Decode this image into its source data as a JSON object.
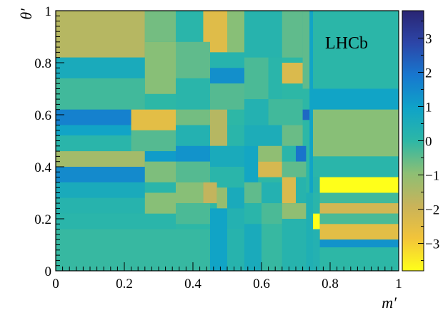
{
  "chart_data": {
    "type": "heatmap",
    "xlabel": "m′",
    "ylabel": "θ′",
    "xlim": [
      0,
      1
    ],
    "ylim": [
      0,
      1
    ],
    "x_ticks": [
      "0",
      "0.2",
      "0.4",
      "0.6",
      "0.8",
      "1"
    ],
    "y_ticks": [
      "0",
      "0.2",
      "0.4",
      "0.6",
      "0.8",
      "1"
    ],
    "annotation": "LHCb",
    "colorbar": {
      "range": [
        -3.8,
        3.8
      ],
      "ticks": [
        "−3",
        "−2",
        "−1",
        "0",
        "1",
        "2",
        "3"
      ],
      "tick_values": [
        -3,
        -2,
        -1,
        0,
        1,
        2,
        3
      ],
      "colormap": [
        "#ffff1a",
        "#f2c43a",
        "#c9b35a",
        "#8dbf74",
        "#2db7a6",
        "#0fa3c8",
        "#1778cf",
        "#2c46a8",
        "#2a2573"
      ]
    },
    "cells": [
      {
        "x0": 0.0,
        "x1": 0.26,
        "y0": 0.82,
        "y1": 1.0,
        "v": -1.6
      },
      {
        "x0": 0.26,
        "x1": 0.35,
        "y0": 0.88,
        "y1": 1.0,
        "v": -0.7
      },
      {
        "x0": 0.35,
        "x1": 0.43,
        "y0": 0.88,
        "y1": 1.0,
        "v": 0.1
      },
      {
        "x0": 0.43,
        "x1": 0.5,
        "y0": 0.84,
        "y1": 1.0,
        "v": -2.4
      },
      {
        "x0": 0.5,
        "x1": 0.55,
        "y0": 0.82,
        "y1": 1.0,
        "v": -0.9
      },
      {
        "x0": 0.55,
        "x1": 0.66,
        "y0": 0.82,
        "y1": 1.0,
        "v": 0.2
      },
      {
        "x0": 0.66,
        "x1": 0.72,
        "y0": 0.82,
        "y1": 1.0,
        "v": -0.5
      },
      {
        "x0": 0.72,
        "x1": 0.74,
        "y0": 0.7,
        "y1": 1.0,
        "v": -0.5
      },
      {
        "x0": 0.74,
        "x1": 0.75,
        "y0": 0.3,
        "y1": 1.0,
        "v": 0.9
      },
      {
        "x0": 0.75,
        "x1": 1.0,
        "y0": 0.7,
        "y1": 1.0,
        "v": 0.05
      },
      {
        "x0": 0.0,
        "x1": 0.26,
        "y0": 0.74,
        "y1": 0.82,
        "v": 0.6
      },
      {
        "x0": 0.26,
        "x1": 0.35,
        "y0": 0.68,
        "y1": 0.88,
        "v": -0.9
      },
      {
        "x0": 0.35,
        "x1": 0.45,
        "y0": 0.74,
        "y1": 0.88,
        "v": -0.5
      },
      {
        "x0": 0.45,
        "x1": 0.55,
        "y0": 0.78,
        "y1": 0.84,
        "v": 0.2
      },
      {
        "x0": 0.0,
        "x1": 0.26,
        "y0": 0.62,
        "y1": 0.74,
        "v": -0.2
      },
      {
        "x0": 0.35,
        "x1": 0.45,
        "y0": 0.62,
        "y1": 0.74,
        "v": 0.1
      },
      {
        "x0": 0.45,
        "x1": 0.55,
        "y0": 0.72,
        "y1": 0.78,
        "v": 1.4
      },
      {
        "x0": 0.55,
        "x1": 0.62,
        "y0": 0.66,
        "y1": 0.82,
        "v": -0.3
      },
      {
        "x0": 0.62,
        "x1": 0.66,
        "y0": 0.66,
        "y1": 0.82,
        "v": 0.1
      },
      {
        "x0": 0.66,
        "x1": 0.72,
        "y0": 0.72,
        "y1": 0.8,
        "v": -2.3
      },
      {
        "x0": 0.75,
        "x1": 1.0,
        "y0": 0.62,
        "y1": 0.7,
        "v": 0.9
      },
      {
        "x0": 0.0,
        "x1": 0.22,
        "y0": 0.56,
        "y1": 0.62,
        "v": 1.7
      },
      {
        "x0": 0.0,
        "x1": 0.22,
        "y0": 0.52,
        "y1": 0.56,
        "v": 0.9
      },
      {
        "x0": 0.22,
        "x1": 0.35,
        "y0": 0.54,
        "y1": 0.62,
        "v": -2.5
      },
      {
        "x0": 0.35,
        "x1": 0.45,
        "y0": 0.56,
        "y1": 0.62,
        "v": -0.7
      },
      {
        "x0": 0.45,
        "x1": 0.55,
        "y0": 0.62,
        "y1": 0.72,
        "v": -0.4
      },
      {
        "x0": 0.55,
        "x1": 0.62,
        "y0": 0.56,
        "y1": 0.66,
        "v": 0.3
      },
      {
        "x0": 0.62,
        "x1": 0.72,
        "y0": 0.56,
        "y1": 0.66,
        "v": -0.2
      },
      {
        "x0": 0.72,
        "x1": 0.74,
        "y0": 0.58,
        "y1": 0.62,
        "v": 2.2
      },
      {
        "x0": 0.75,
        "x1": 1.0,
        "y0": 0.44,
        "y1": 0.62,
        "v": -0.9
      },
      {
        "x0": 0.0,
        "x1": 0.22,
        "y0": 0.46,
        "y1": 0.52,
        "v": 0.1
      },
      {
        "x0": 0.22,
        "x1": 0.35,
        "y0": 0.46,
        "y1": 0.54,
        "v": -0.4
      },
      {
        "x0": 0.35,
        "x1": 0.45,
        "y0": 0.48,
        "y1": 0.56,
        "v": 0.3
      },
      {
        "x0": 0.45,
        "x1": 0.5,
        "y0": 0.48,
        "y1": 0.62,
        "v": -1.6
      },
      {
        "x0": 0.5,
        "x1": 0.55,
        "y0": 0.48,
        "y1": 0.56,
        "v": 0.1
      },
      {
        "x0": 0.55,
        "x1": 0.66,
        "y0": 0.48,
        "y1": 0.56,
        "v": 0.5
      },
      {
        "x0": 0.66,
        "x1": 0.72,
        "y0": 0.48,
        "y1": 0.56,
        "v": -0.6
      },
      {
        "x0": 0.0,
        "x1": 0.26,
        "y0": 0.4,
        "y1": 0.46,
        "v": -1.3
      },
      {
        "x0": 0.26,
        "x1": 0.35,
        "y0": 0.42,
        "y1": 0.46,
        "v": 1.1
      },
      {
        "x0": 0.35,
        "x1": 0.45,
        "y0": 0.42,
        "y1": 0.48,
        "v": 1.3
      },
      {
        "x0": 0.45,
        "x1": 0.55,
        "y0": 0.4,
        "y1": 0.48,
        "v": 0.6
      },
      {
        "x0": 0.55,
        "x1": 0.59,
        "y0": 0.34,
        "y1": 0.48,
        "v": 0.8
      },
      {
        "x0": 0.59,
        "x1": 0.66,
        "y0": 0.42,
        "y1": 0.48,
        "v": -1.0
      },
      {
        "x0": 0.66,
        "x1": 0.7,
        "y0": 0.42,
        "y1": 0.48,
        "v": 0.1
      },
      {
        "x0": 0.7,
        "x1": 0.73,
        "y0": 0.42,
        "y1": 0.48,
        "v": 2.0
      },
      {
        "x0": 0.75,
        "x1": 1.0,
        "y0": 0.36,
        "y1": 0.44,
        "v": 0.1
      },
      {
        "x0": 0.0,
        "x1": 0.26,
        "y0": 0.34,
        "y1": 0.4,
        "v": 1.5
      },
      {
        "x0": 0.26,
        "x1": 0.35,
        "y0": 0.34,
        "y1": 0.42,
        "v": -0.8
      },
      {
        "x0": 0.35,
        "x1": 0.45,
        "y0": 0.34,
        "y1": 0.42,
        "v": -0.4
      },
      {
        "x0": 0.45,
        "x1": 0.55,
        "y0": 0.32,
        "y1": 0.4,
        "v": 0.1
      },
      {
        "x0": 0.59,
        "x1": 0.66,
        "y0": 0.36,
        "y1": 0.42,
        "v": -2.2
      },
      {
        "x0": 0.66,
        "x1": 0.73,
        "y0": 0.36,
        "y1": 0.42,
        "v": -0.5
      },
      {
        "x0": 0.0,
        "x1": 0.26,
        "y0": 0.28,
        "y1": 0.34,
        "v": 0.6
      },
      {
        "x0": 0.26,
        "x1": 0.35,
        "y0": 0.3,
        "y1": 0.34,
        "v": 0.1
      },
      {
        "x0": 0.35,
        "x1": 0.43,
        "y0": 0.26,
        "y1": 0.34,
        "v": -0.9
      },
      {
        "x0": 0.43,
        "x1": 0.47,
        "y0": 0.26,
        "y1": 0.34,
        "v": -1.8
      },
      {
        "x0": 0.47,
        "x1": 0.5,
        "y0": 0.24,
        "y1": 0.32,
        "v": -1.1
      },
      {
        "x0": 0.5,
        "x1": 0.55,
        "y0": 0.24,
        "y1": 0.32,
        "v": 0.6
      },
      {
        "x0": 0.55,
        "x1": 0.6,
        "y0": 0.26,
        "y1": 0.34,
        "v": -0.5
      },
      {
        "x0": 0.6,
        "x1": 0.66,
        "y0": 0.26,
        "y1": 0.34,
        "v": 0.3
      },
      {
        "x0": 0.66,
        "x1": 0.7,
        "y0": 0.26,
        "y1": 0.36,
        "v": -2.3
      },
      {
        "x0": 0.7,
        "x1": 0.73,
        "y0": 0.26,
        "y1": 0.36,
        "v": 0.2
      },
      {
        "x0": 0.75,
        "x1": 0.77,
        "y0": 0.3,
        "y1": 0.36,
        "v": 0.2
      },
      {
        "x0": 0.77,
        "x1": 1.0,
        "y0": 0.3,
        "y1": 0.36,
        "v": -3.8
      },
      {
        "x0": 0.0,
        "x1": 0.26,
        "y0": 0.22,
        "y1": 0.28,
        "v": 0.2
      },
      {
        "x0": 0.26,
        "x1": 0.35,
        "y0": 0.2,
        "y1": 0.3,
        "v": -0.9
      },
      {
        "x0": 0.35,
        "x1": 0.45,
        "y0": 0.18,
        "y1": 0.26,
        "v": -0.3
      },
      {
        "x0": 0.45,
        "x1": 0.5,
        "y0": 0.0,
        "y1": 0.24,
        "v": 0.9
      },
      {
        "x0": 0.5,
        "x1": 0.55,
        "y0": 0.16,
        "y1": 0.24,
        "v": 0.3
      },
      {
        "x0": 0.55,
        "x1": 0.6,
        "y0": 0.18,
        "y1": 0.26,
        "v": 0.1
      },
      {
        "x0": 0.6,
        "x1": 0.66,
        "y0": 0.18,
        "y1": 0.26,
        "v": -0.3
      },
      {
        "x0": 0.66,
        "x1": 0.73,
        "y0": 0.2,
        "y1": 0.26,
        "v": -1.0
      },
      {
        "x0": 0.75,
        "x1": 0.77,
        "y0": 0.22,
        "y1": 0.3,
        "v": 0.1
      },
      {
        "x0": 0.77,
        "x1": 1.0,
        "y0": 0.26,
        "y1": 0.3,
        "v": -0.2
      },
      {
        "x0": 0.77,
        "x1": 1.0,
        "y0": 0.22,
        "y1": 0.26,
        "v": -2.1
      },
      {
        "x0": 0.0,
        "x1": 0.35,
        "y0": 0.16,
        "y1": 0.22,
        "v": 0.1
      },
      {
        "x0": 0.75,
        "x1": 0.77,
        "y0": 0.16,
        "y1": 0.22,
        "v": -3.8
      },
      {
        "x0": 0.77,
        "x1": 1.0,
        "y0": 0.18,
        "y1": 0.22,
        "v": -0.3
      },
      {
        "x0": 0.77,
        "x1": 1.0,
        "y0": 0.12,
        "y1": 0.18,
        "v": -2.5
      },
      {
        "x0": 0.0,
        "x1": 0.45,
        "y0": 0.0,
        "y1": 0.16,
        "v": -0.1
      },
      {
        "x0": 0.5,
        "x1": 0.55,
        "y0": 0.0,
        "y1": 0.16,
        "v": 0.2
      },
      {
        "x0": 0.55,
        "x1": 0.6,
        "y0": 0.0,
        "y1": 0.18,
        "v": 0.6
      },
      {
        "x0": 0.6,
        "x1": 0.66,
        "y0": 0.0,
        "y1": 0.18,
        "v": -0.1
      },
      {
        "x0": 0.66,
        "x1": 0.73,
        "y0": 0.0,
        "y1": 0.2,
        "v": 0.2
      },
      {
        "x0": 0.73,
        "x1": 0.75,
        "y0": 0.0,
        "y1": 0.3,
        "v": 0.4
      },
      {
        "x0": 0.75,
        "x1": 0.77,
        "y0": 0.0,
        "y1": 0.16,
        "v": 0.3
      },
      {
        "x0": 0.77,
        "x1": 1.0,
        "y0": 0.09,
        "y1": 0.12,
        "v": 1.3
      },
      {
        "x0": 0.77,
        "x1": 1.0,
        "y0": 0.0,
        "y1": 0.09,
        "v": 0.0
      }
    ]
  }
}
